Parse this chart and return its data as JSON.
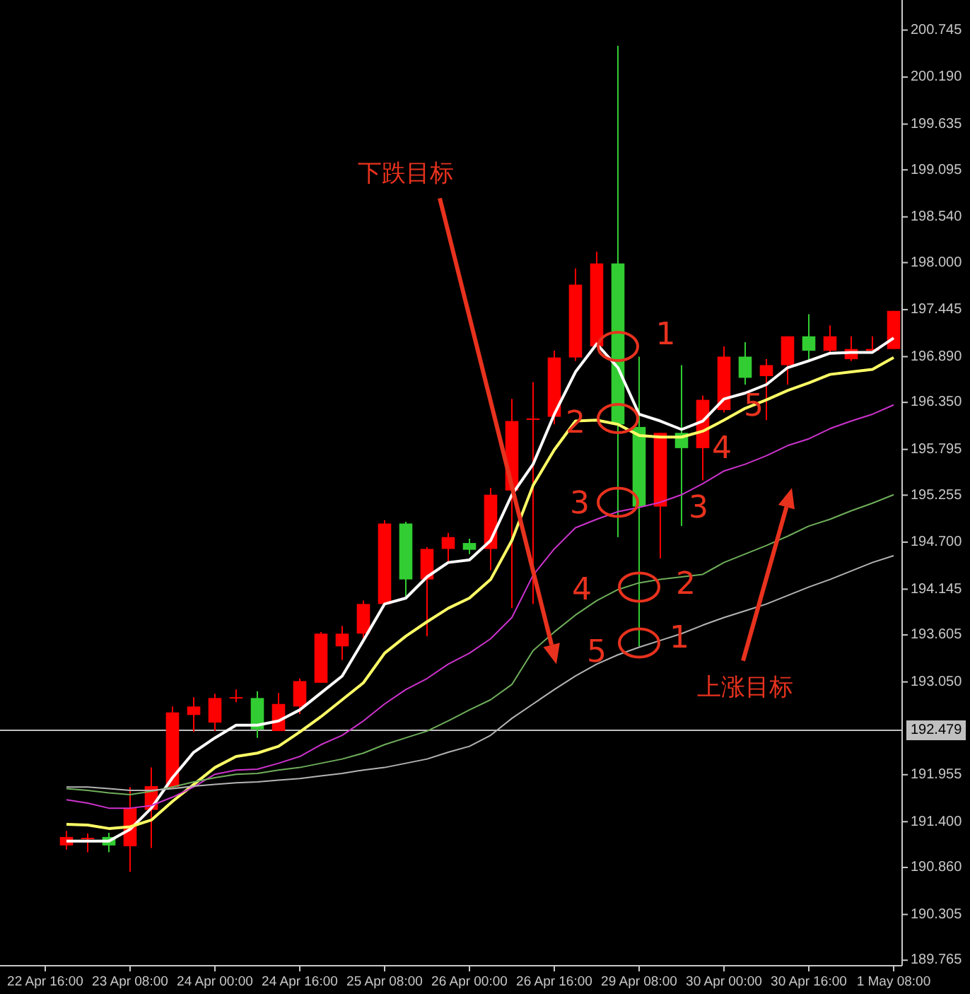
{
  "chart_data": {
    "type": "candlestick",
    "categories": [
      "22 Apr 16:00",
      null,
      null,
      null,
      "23 Apr 08:00",
      null,
      null,
      null,
      "24 Apr 00:00",
      null,
      null,
      null,
      "24 Apr 16:00",
      null,
      null,
      null,
      "25 Apr 08:00",
      null,
      null,
      null,
      "26 Apr 00:00",
      null,
      null,
      null,
      "26 Apr 16:00",
      null,
      null,
      null,
      "29 Apr 08:00",
      null,
      null,
      null,
      "30 Apr 00:00",
      null,
      null,
      null,
      "30 Apr 16:00",
      null,
      null,
      null,
      "1 May 08:00"
    ],
    "ohlc": [
      null,
      [
        191.12,
        191.29,
        191.07,
        191.22
      ],
      [
        191.21,
        191.26,
        191.04,
        191.21
      ],
      [
        191.22,
        191.27,
        191.04,
        191.12
      ],
      [
        191.11,
        191.81,
        190.81,
        191.56
      ],
      [
        191.54,
        192.04,
        191.09,
        191.82
      ],
      [
        191.81,
        192.76,
        191.79,
        192.69
      ],
      [
        192.66,
        192.87,
        192.46,
        192.76
      ],
      [
        192.57,
        192.91,
        192.47,
        192.86
      ],
      [
        192.87,
        192.96,
        192.81,
        192.87
      ],
      [
        192.86,
        192.94,
        192.39,
        192.49
      ],
      [
        192.47,
        192.92,
        192.47,
        192.79
      ],
      [
        192.76,
        193.09,
        192.67,
        193.06
      ],
      [
        193.04,
        193.64,
        193.04,
        193.62
      ],
      [
        193.47,
        193.71,
        193.31,
        193.62
      ],
      [
        193.62,
        194.01,
        193.54,
        193.97
      ],
      [
        193.97,
        194.96,
        193.97,
        194.92
      ],
      [
        194.92,
        194.94,
        194.04,
        194.26
      ],
      [
        194.26,
        194.64,
        193.59,
        194.62
      ],
      [
        194.62,
        194.81,
        194.47,
        194.76
      ],
      [
        194.69,
        194.74,
        194.56,
        194.61
      ],
      [
        194.62,
        195.34,
        194.37,
        195.26
      ],
      [
        195.31,
        196.39,
        193.92,
        196.13
      ],
      [
        196.16,
        196.59,
        193.97,
        196.16
      ],
      [
        196.18,
        196.96,
        196.09,
        196.88
      ],
      [
        196.88,
        197.93,
        196.84,
        197.74
      ],
      [
        197.01,
        198.13,
        197.01,
        197.99
      ],
      [
        197.99,
        200.56,
        194.76,
        196.09
      ],
      [
        196.06,
        196.89,
        193.47,
        195.12
      ],
      [
        195.12,
        195.99,
        194.51,
        195.99
      ],
      [
        195.99,
        196.79,
        194.89,
        195.81
      ],
      [
        195.81,
        196.43,
        195.43,
        196.38
      ],
      [
        196.26,
        197.01,
        196.23,
        196.89
      ],
      [
        196.89,
        197.06,
        196.56,
        196.64
      ],
      [
        196.66,
        196.86,
        196.14,
        196.79
      ],
      [
        196.79,
        197.13,
        196.56,
        197.13
      ],
      [
        197.13,
        197.39,
        196.84,
        196.96
      ],
      [
        196.96,
        197.26,
        196.93,
        197.13
      ],
      [
        196.86,
        197.13,
        196.84,
        196.98
      ],
      [
        196.96,
        197.13,
        196.96,
        196.98
      ],
      [
        196.98,
        197.43,
        196.98,
        197.43
      ]
    ],
    "colors": [
      null,
      "#ff0000",
      "#ff0000",
      "#32cd32",
      "#ff0000",
      "#ff0000",
      "#ff0000",
      "#ff0000",
      "#ff0000",
      "#ff0000",
      "#32cd32",
      "#ff0000",
      "#ff0000",
      "#ff0000",
      "#ff0000",
      "#ff0000",
      "#ff0000",
      "#32cd32",
      "#ff0000",
      "#ff0000",
      "#32cd32",
      "#ff0000",
      "#ff0000",
      "#ff0000",
      "#ff0000",
      "#ff0000",
      "#ff0000",
      "#32cd32",
      "#32cd32",
      "#ff0000",
      "#32cd32",
      "#ff0000",
      "#ff0000",
      "#32cd32",
      "#ff0000",
      "#ff0000",
      "#32cd32",
      "#ff0000",
      "#ff0000",
      "#ff0000",
      "#ff0000"
    ],
    "series": [
      {
        "type": "line",
        "color": "#ffffff",
        "values": [
          null,
          191.17,
          191.17,
          191.17,
          191.31,
          191.56,
          191.92,
          192.22,
          192.39,
          192.54,
          192.54,
          192.59,
          192.72,
          192.92,
          193.12,
          193.54,
          193.97,
          194.04,
          194.29,
          194.46,
          194.49,
          194.72,
          195.26,
          195.62,
          196.21,
          196.71,
          197.04,
          196.76,
          196.21,
          196.13,
          196.03,
          196.13,
          196.39,
          196.46,
          196.56,
          196.76,
          196.84,
          196.93,
          196.94,
          196.94,
          197.11
        ]
      },
      {
        "type": "line",
        "color": "#ffff66",
        "values": [
          null,
          191.37,
          191.36,
          191.32,
          191.34,
          191.42,
          191.64,
          191.84,
          192.04,
          192.17,
          192.21,
          192.29,
          192.46,
          192.64,
          192.84,
          193.04,
          193.39,
          193.59,
          193.76,
          193.92,
          194.04,
          194.26,
          194.72,
          195.37,
          195.79,
          196.13,
          196.14,
          196.09,
          195.96,
          195.94,
          195.94,
          196.01,
          196.14,
          196.28,
          196.38,
          196.49,
          196.58,
          196.68,
          196.71,
          196.74,
          196.88
        ]
      },
      {
        "type": "line",
        "color": "#cc33cc",
        "values": [
          null,
          191.66,
          191.62,
          191.56,
          191.56,
          191.59,
          191.69,
          191.81,
          191.96,
          192.01,
          192.02,
          192.09,
          192.17,
          192.31,
          192.42,
          192.59,
          192.79,
          192.96,
          193.09,
          193.26,
          193.39,
          193.56,
          193.81,
          194.31,
          194.62,
          194.87,
          194.97,
          195.06,
          195.11,
          195.17,
          195.26,
          195.39,
          195.54,
          195.62,
          195.72,
          195.84,
          195.92,
          196.04,
          196.13,
          196.21,
          196.32
        ]
      },
      {
        "type": "line",
        "color": "#6fae5a",
        "values": [
          null,
          191.79,
          191.77,
          191.74,
          191.72,
          191.76,
          191.81,
          191.87,
          191.92,
          191.96,
          191.97,
          192.01,
          192.04,
          192.09,
          192.14,
          192.21,
          192.31,
          192.39,
          192.47,
          192.59,
          192.72,
          192.84,
          193.02,
          193.42,
          193.64,
          193.84,
          194.01,
          194.14,
          194.22,
          194.26,
          194.29,
          194.32,
          194.46,
          194.56,
          194.66,
          194.77,
          194.89,
          194.97,
          195.07,
          195.16,
          195.26
        ]
      },
      {
        "type": "line",
        "color": "#b4b4b4",
        "values": [
          null,
          191.81,
          191.81,
          191.79,
          191.77,
          191.77,
          191.79,
          191.82,
          191.84,
          191.86,
          191.87,
          191.89,
          191.91,
          191.94,
          191.97,
          192.01,
          192.04,
          192.09,
          192.14,
          192.22,
          192.29,
          192.42,
          192.62,
          192.79,
          192.96,
          193.12,
          193.26,
          193.37,
          193.46,
          193.54,
          193.62,
          193.72,
          193.81,
          193.89,
          193.97,
          194.07,
          194.17,
          194.26,
          194.36,
          194.46,
          194.54
        ]
      }
    ],
    "ylim": [
      189.7,
      201.1
    ],
    "yticks": [
      {
        "value": 200.745,
        "label": "200.745"
      },
      {
        "value": 200.19,
        "label": "200.190"
      },
      {
        "value": 199.635,
        "label": "199.635"
      },
      {
        "value": 199.095,
        "label": "199.095"
      },
      {
        "value": 198.54,
        "label": "198.540"
      },
      {
        "value": 198.0,
        "label": "198.000"
      },
      {
        "value": 197.445,
        "label": "197.445"
      },
      {
        "value": 196.89,
        "label": "196.890"
      },
      {
        "value": 196.35,
        "label": "196.350"
      },
      {
        "value": 195.795,
        "label": "195.795"
      },
      {
        "value": 195.255,
        "label": "195.255"
      },
      {
        "value": 194.7,
        "label": "194.700"
      },
      {
        "value": 194.145,
        "label": "194.145"
      },
      {
        "value": 193.605,
        "label": "193.605"
      },
      {
        "value": 193.05,
        "label": "193.050"
      },
      {
        "value": 191.955,
        "label": "191.955"
      },
      {
        "value": 191.4,
        "label": "191.400"
      },
      {
        "value": 190.86,
        "label": "190.860"
      },
      {
        "value": 190.305,
        "label": "190.305"
      },
      {
        "value": 189.765,
        "label": "189.765"
      }
    ],
    "ref_lines": [
      {
        "axis": "y",
        "value": 192.479,
        "label": "192.479",
        "color": "#c0c0c0"
      }
    ],
    "annotations": [
      "下跌目标",
      "上涨目标",
      "1",
      "2",
      "3",
      "4",
      "5",
      "3",
      "4",
      "5",
      "2",
      "1"
    ]
  }
}
